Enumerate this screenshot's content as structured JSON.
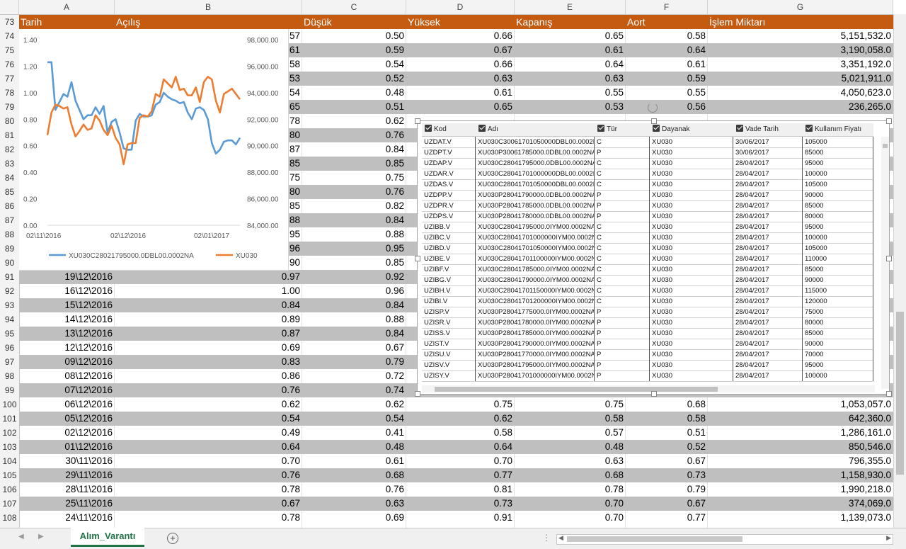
{
  "columns": [
    "A",
    "B",
    "C",
    "D",
    "E",
    "F",
    "G"
  ],
  "header_row": {
    "num": "73",
    "cells": [
      "Tarih",
      "Açılış",
      "Düşük",
      "Yüksek",
      "Kapanış",
      "Aort",
      "İşlem Miktarı"
    ]
  },
  "rows": [
    {
      "num": "74",
      "tarih": "",
      "acilis": ".57",
      "dusuk": "0.50",
      "yuksek": "0.66",
      "kapanis": "0.65",
      "aort": "0.58",
      "miktar": "5,151,532.0"
    },
    {
      "num": "75",
      "tarih": "",
      "acilis": ".61",
      "dusuk": "0.59",
      "yuksek": "0.67",
      "kapanis": "0.61",
      "aort": "0.64",
      "miktar": "3,190,058.0"
    },
    {
      "num": "76",
      "tarih": "",
      "acilis": ".58",
      "dusuk": "0.54",
      "yuksek": "0.66",
      "kapanis": "0.64",
      "aort": "0.61",
      "miktar": "3,351,192.0"
    },
    {
      "num": "77",
      "tarih": "",
      "acilis": ".53",
      "dusuk": "0.52",
      "yuksek": "0.63",
      "kapanis": "0.63",
      "aort": "0.59",
      "miktar": "5,021,911.0"
    },
    {
      "num": "78",
      "tarih": "",
      "acilis": ".54",
      "dusuk": "0.48",
      "yuksek": "0.61",
      "kapanis": "0.55",
      "aort": "0.55",
      "miktar": "4,050,623.0"
    },
    {
      "num": "79",
      "tarih": "",
      "acilis": ".65",
      "dusuk": "0.51",
      "yuksek": "0.65",
      "kapanis": "0.53",
      "aort": "0.56",
      "miktar": "236,265.0"
    },
    {
      "num": "80",
      "tarih": "",
      "acilis": ".78",
      "dusuk": "0.62",
      "yuksek": "",
      "kapanis": "",
      "aort": "",
      "miktar": ""
    },
    {
      "num": "81",
      "tarih": "",
      "acilis": ".80",
      "dusuk": "0.76",
      "yuksek": "",
      "kapanis": "",
      "aort": "",
      "miktar": ""
    },
    {
      "num": "82",
      "tarih": "",
      "acilis": ".87",
      "dusuk": "0.84",
      "yuksek": "",
      "kapanis": "",
      "aort": "",
      "miktar": ""
    },
    {
      "num": "83",
      "tarih": "",
      "acilis": ".85",
      "dusuk": "0.85",
      "yuksek": "",
      "kapanis": "",
      "aort": "",
      "miktar": ""
    },
    {
      "num": "84",
      "tarih": "",
      "acilis": ".75",
      "dusuk": "0.75",
      "yuksek": "",
      "kapanis": "",
      "aort": "",
      "miktar": ""
    },
    {
      "num": "85",
      "tarih": "",
      "acilis": ".80",
      "dusuk": "0.76",
      "yuksek": "",
      "kapanis": "",
      "aort": "",
      "miktar": ""
    },
    {
      "num": "86",
      "tarih": "",
      "acilis": ".85",
      "dusuk": "0.82",
      "yuksek": "",
      "kapanis": "",
      "aort": "",
      "miktar": ""
    },
    {
      "num": "87",
      "tarih": "",
      "acilis": ".88",
      "dusuk": "0.84",
      "yuksek": "",
      "kapanis": "",
      "aort": "",
      "miktar": ""
    },
    {
      "num": "88",
      "tarih": "",
      "acilis": ".95",
      "dusuk": "0.88",
      "yuksek": "",
      "kapanis": "",
      "aort": "",
      "miktar": ""
    },
    {
      "num": "89",
      "tarih": "",
      "acilis": ".96",
      "dusuk": "0.95",
      "yuksek": "",
      "kapanis": "",
      "aort": "",
      "miktar": ""
    },
    {
      "num": "90",
      "tarih": "",
      "acilis": ".90",
      "dusuk": "0.85",
      "yuksek": "",
      "kapanis": "",
      "aort": "",
      "miktar": ""
    },
    {
      "num": "91",
      "tarih": "19\\12\\2016",
      "acilis": "0.97",
      "dusuk": "0.92",
      "yuksek": "",
      "kapanis": "",
      "aort": "",
      "miktar": ""
    },
    {
      "num": "92",
      "tarih": "16\\12\\2016",
      "acilis": "1.00",
      "dusuk": "0.96",
      "yuksek": "",
      "kapanis": "",
      "aort": "",
      "miktar": ""
    },
    {
      "num": "93",
      "tarih": "15\\12\\2016",
      "acilis": "0.84",
      "dusuk": "0.84",
      "yuksek": "",
      "kapanis": "",
      "aort": "",
      "miktar": ""
    },
    {
      "num": "94",
      "tarih": "14\\12\\2016",
      "acilis": "0.89",
      "dusuk": "0.88",
      "yuksek": "",
      "kapanis": "",
      "aort": "",
      "miktar": ""
    },
    {
      "num": "95",
      "tarih": "13\\12\\2016",
      "acilis": "0.87",
      "dusuk": "0.84",
      "yuksek": "",
      "kapanis": "",
      "aort": "",
      "miktar": ""
    },
    {
      "num": "96",
      "tarih": "12\\12\\2016",
      "acilis": "0.69",
      "dusuk": "0.67",
      "yuksek": "",
      "kapanis": "",
      "aort": "",
      "miktar": ""
    },
    {
      "num": "97",
      "tarih": "09\\12\\2016",
      "acilis": "0.83",
      "dusuk": "0.79",
      "yuksek": "",
      "kapanis": "",
      "aort": "",
      "miktar": ""
    },
    {
      "num": "98",
      "tarih": "08\\12\\2016",
      "acilis": "0.86",
      "dusuk": "0.72",
      "yuksek": "",
      "kapanis": "",
      "aort": "",
      "miktar": ""
    },
    {
      "num": "99",
      "tarih": "07\\12\\2016",
      "acilis": "0.76",
      "dusuk": "0.74",
      "yuksek": "",
      "kapanis": "",
      "aort": "",
      "miktar": ""
    },
    {
      "num": "100",
      "tarih": "06\\12\\2016",
      "acilis": "0.62",
      "dusuk": "0.62",
      "yuksek": "0.75",
      "kapanis": "0.75",
      "aort": "0.68",
      "miktar": "1,053,057.0"
    },
    {
      "num": "101",
      "tarih": "05\\12\\2016",
      "acilis": "0.54",
      "dusuk": "0.54",
      "yuksek": "0.62",
      "kapanis": "0.58",
      "aort": "0.58",
      "miktar": "642,360.0"
    },
    {
      "num": "102",
      "tarih": "02\\12\\2016",
      "acilis": "0.49",
      "dusuk": "0.41",
      "yuksek": "0.58",
      "kapanis": "0.57",
      "aort": "0.51",
      "miktar": "1,286,161.0"
    },
    {
      "num": "103",
      "tarih": "01\\12\\2016",
      "acilis": "0.64",
      "dusuk": "0.48",
      "yuksek": "0.64",
      "kapanis": "0.48",
      "aort": "0.52",
      "miktar": "850,546.0"
    },
    {
      "num": "104",
      "tarih": "30\\11\\2016",
      "acilis": "0.70",
      "dusuk": "0.61",
      "yuksek": "0.70",
      "kapanis": "0.63",
      "aort": "0.67",
      "miktar": "796,355.0"
    },
    {
      "num": "105",
      "tarih": "29\\11\\2016",
      "acilis": "0.76",
      "dusuk": "0.68",
      "yuksek": "0.77",
      "kapanis": "0.68",
      "aort": "0.73",
      "miktar": "1,158,930.0"
    },
    {
      "num": "106",
      "tarih": "28\\11\\2016",
      "acilis": "0.78",
      "dusuk": "0.76",
      "yuksek": "0.81",
      "kapanis": "0.78",
      "aort": "0.79",
      "miktar": "1,990,218.0"
    },
    {
      "num": "107",
      "tarih": "25\\11\\2016",
      "acilis": "0.67",
      "dusuk": "0.63",
      "yuksek": "0.73",
      "kapanis": "0.70",
      "aort": "0.67",
      "miktar": "374,069.0"
    },
    {
      "num": "108",
      "tarih": "24\\11\\2016",
      "acilis": "0.78",
      "dusuk": "0.69",
      "yuksek": "0.91",
      "kapanis": "0.70",
      "aort": "0.77",
      "miktar": "1,139,073.0"
    }
  ],
  "chart_data": {
    "type": "line",
    "x_tick_labels": [
      "02\\11\\2016",
      "02\\12\\2016",
      "02\\01\\2017"
    ],
    "y_left_ticks": [
      "0.00",
      "0.20",
      "0.40",
      "0.60",
      "0.80",
      "1.00",
      "1.20",
      "1.40"
    ],
    "y_right_ticks": [
      "84,000.00",
      "86,000.00",
      "88,000.00",
      "90,000.00",
      "92,000.00",
      "94,000.00",
      "96,000.00",
      "98,000.00"
    ],
    "ylim_left": [
      0,
      1.4
    ],
    "ylim_right": [
      84000,
      98000
    ],
    "series": [
      {
        "name": "XU030C28021795000.0DBL00.0002NA",
        "axis": "left",
        "color": "#5b9bd5",
        "values": [
          1.23,
          1.23,
          0.87,
          0.93,
          0.99,
          0.97,
          1.08,
          0.94,
          0.87,
          0.8,
          0.83,
          0.83,
          0.89,
          0.84,
          0.9,
          0.7,
          0.78,
          0.8,
          0.7,
          0.58,
          0.57,
          0.57,
          0.79,
          0.84,
          0.82,
          0.82,
          0.83,
          0.91,
          0.93,
          1.0,
          0.97,
          0.95,
          0.94,
          0.92,
          0.93,
          0.85,
          0.8,
          0.88,
          0.89,
          0.87,
          0.8,
          0.62,
          0.54,
          0.57,
          0.63,
          0.64,
          0.64,
          0.61,
          0.66
        ]
      },
      {
        "name": "XU030",
        "axis": "right",
        "color": "#ed7d31",
        "values": [
          90800,
          92500,
          93100,
          93000,
          92800,
          92900,
          91600,
          90700,
          91100,
          91600,
          91200,
          91300,
          92300,
          91900,
          91200,
          90800,
          91500,
          90600,
          90100,
          88600,
          90100,
          90200,
          90200,
          92100,
          92300,
          92200,
          92600,
          93900,
          93700,
          95000,
          94700,
          94400,
          95200,
          94200,
          94300,
          93800,
          93800,
          94400,
          93300,
          94800,
          95200,
          95000,
          93400,
          92500,
          93900,
          94100,
          94300,
          93900,
          93500
        ]
      }
    ],
    "legend_position": "bottom",
    "grid": false
  },
  "data_table": {
    "headers": [
      "Kod",
      "Adı",
      "Tür",
      "Dayanak",
      "Vade Tarih",
      "Kullanım Fiyatı"
    ],
    "rows": [
      [
        "UZDAT.V",
        "XU030C30061701050000DBL00.0002NA",
        "C",
        "XU030",
        "30/06/2017",
        "105000"
      ],
      [
        "UZDPT.V",
        "XU030P30061785000.0DBL00.0002NA",
        "P",
        "XU030",
        "30/06/2017",
        "85000"
      ],
      [
        "UZDAP.V",
        "XU030C28041795000.0DBL00.0002NA",
        "C",
        "XU030",
        "28/04/2017",
        "95000"
      ],
      [
        "UZDAR.V",
        "XU030C28041701000000DBL00.0002NA",
        "C",
        "XU030",
        "28/04/2017",
        "100000"
      ],
      [
        "UZDAS.V",
        "XU030C28041701050000DBL00.0002NA",
        "C",
        "XU030",
        "28/04/2017",
        "105000"
      ],
      [
        "UZDPP.V",
        "XU030P28041790000.0DBL00.0002NA",
        "P",
        "XU030",
        "28/04/2017",
        "90000"
      ],
      [
        "UZDPR.V",
        "XU030P28041785000.0DBL00.0002NA",
        "P",
        "XU030",
        "28/04/2017",
        "85000"
      ],
      [
        "UZDPS.V",
        "XU030P28041780000.0DBL00.0002NA",
        "P",
        "XU030",
        "28/04/2017",
        "80000"
      ],
      [
        "UZIBB.V",
        "XU030C28041795000.0IYM00.0002NA",
        "C",
        "XU030",
        "28/04/2017",
        "95000"
      ],
      [
        "UZIBC.V",
        "XU030C28041701000000IYM00.0002NA",
        "C",
        "XU030",
        "28/04/2017",
        "100000"
      ],
      [
        "UZIBD.V",
        "XU030C28041701050000IYM00.0002NA",
        "C",
        "XU030",
        "28/04/2017",
        "105000"
      ],
      [
        "UZIBE.V",
        "XU030C28041701100000IYM00.0002NA",
        "C",
        "XU030",
        "28/04/2017",
        "110000"
      ],
      [
        "UZIBF.V",
        "XU030C28041785000.0IYM00.0002NA",
        "C",
        "XU030",
        "28/04/2017",
        "85000"
      ],
      [
        "UZIBG.V",
        "XU030C28041790000.0IYM00.0002NA",
        "C",
        "XU030",
        "28/04/2017",
        "90000"
      ],
      [
        "UZIBH.V",
        "XU030C28041701150000IYM00.0002NA",
        "C",
        "XU030",
        "28/04/2017",
        "115000"
      ],
      [
        "UZIBI.V",
        "XU030C28041701200000IYM00.0002NA",
        "C",
        "XU030",
        "28/04/2017",
        "120000"
      ],
      [
        "UZISP.V",
        "XU030P28041775000.0IYM00.0002NA",
        "P",
        "XU030",
        "28/04/2017",
        "75000"
      ],
      [
        "UZISR.V",
        "XU030P28041780000.0IYM00.0002NA",
        "P",
        "XU030",
        "28/04/2017",
        "80000"
      ],
      [
        "UZISS.V",
        "XU030P28041785000.0IYM00.0002NA",
        "P",
        "XU030",
        "28/04/2017",
        "85000"
      ],
      [
        "UZIST.V",
        "XU030P28041790000.0IYM00.0002NA",
        "P",
        "XU030",
        "28/04/2017",
        "90000"
      ],
      [
        "UZISU.V",
        "XU030P28041770000.0IYM00.0002NA",
        "P",
        "XU030",
        "28/04/2017",
        "70000"
      ],
      [
        "UZISV.V",
        "XU030P28041795000.0IYM00.0002NA",
        "P",
        "XU030",
        "28/04/2017",
        "95000"
      ],
      [
        "UZISY.V",
        "XU030P28041701000000IYM00.0002NA",
        "P",
        "XU030",
        "28/04/2017",
        "100000"
      ]
    ]
  },
  "sheet_tab": "Alım_Varantı",
  "add_sheet_label": "+"
}
